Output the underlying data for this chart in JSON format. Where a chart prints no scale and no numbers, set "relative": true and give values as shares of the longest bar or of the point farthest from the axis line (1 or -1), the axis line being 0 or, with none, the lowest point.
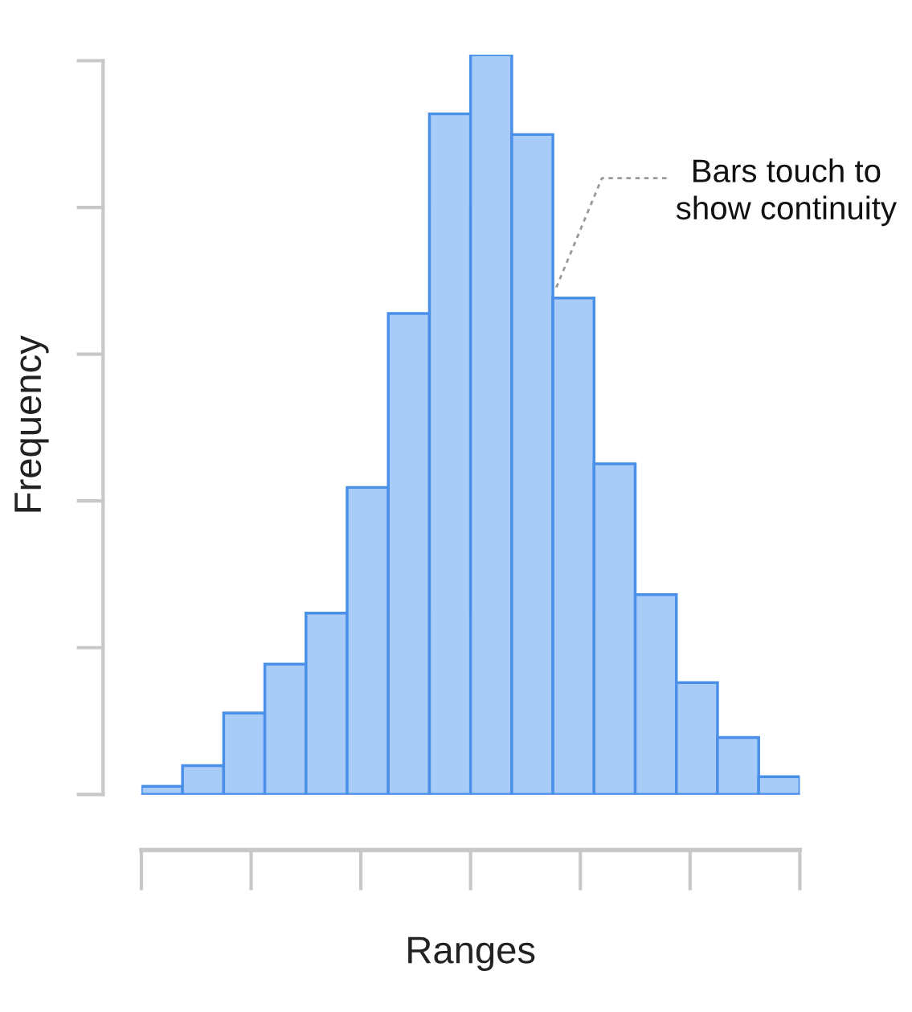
{
  "chart_data": {
    "type": "bar",
    "relative": true,
    "xlabel": "Ranges",
    "ylabel": "Frequency",
    "categories": [
      null,
      null,
      null,
      null,
      null,
      null,
      null,
      null,
      null,
      null,
      null,
      null,
      null,
      null,
      null,
      null
    ],
    "values": [
      0.011,
      0.039,
      0.11,
      0.176,
      0.245,
      0.415,
      0.65,
      0.92,
      1,
      0.892,
      0.671,
      0.447,
      0.27,
      0.151,
      0.077,
      0.024
    ],
    "color": "#a8cbf7",
    "annotations": [
      "Bars touch to\nshow continuity"
    ],
    "grid": false,
    "legend": false
  }
}
